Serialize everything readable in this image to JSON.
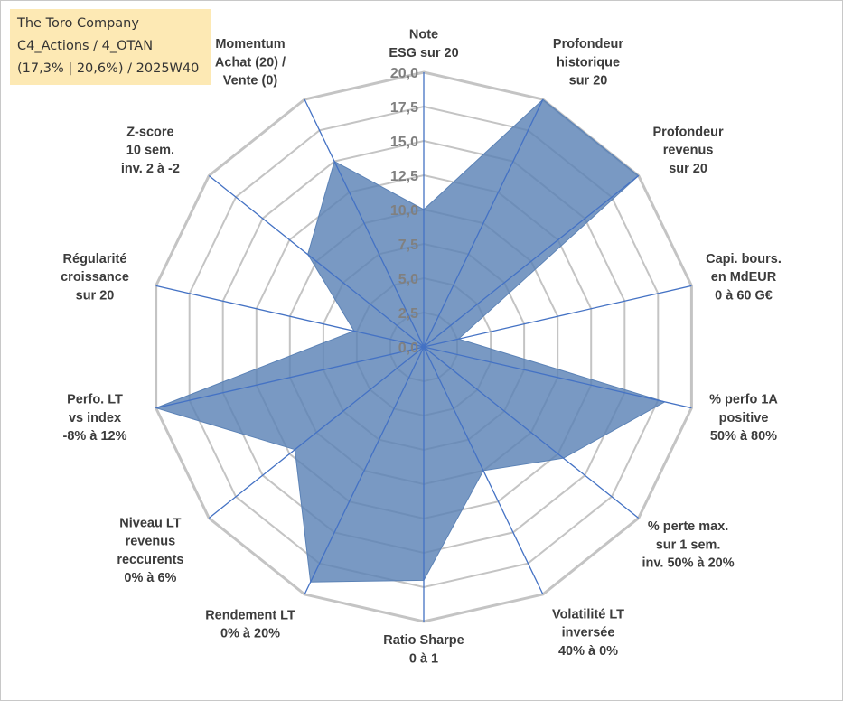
{
  "title_box": {
    "lines": [
      "The Toro Company",
      "C4_Actions / 4_OTAN",
      "(17,3% | 20,6%) / 2025W40"
    ]
  },
  "colors": {
    "fill": "#5b82b6",
    "fill_opacity": 0.82,
    "spoke": "#4472c4",
    "grid": "#c4c4c4",
    "title_bg": "#fde9b4"
  },
  "chart_data": {
    "type": "radar",
    "title": "",
    "rmin": 0,
    "rmax": 20,
    "tick_step": 2.5,
    "tick_labels": [
      "0,0",
      "2,5",
      "5,0",
      "7,5",
      "10,0",
      "12,5",
      "15,0",
      "17,5",
      "20,0"
    ],
    "axes": [
      {
        "label": [
          "Note",
          "ESG sur 20"
        ],
        "value": 10.0
      },
      {
        "label": [
          "Profondeur",
          "historique",
          "sur 20"
        ],
        "value": 20.0
      },
      {
        "label": [
          "Profondeur",
          "revenus",
          "sur 20"
        ],
        "value": 20.0
      },
      {
        "label": [
          "Capi. bours.",
          "en MdEUR",
          "0 à 60 G€"
        ],
        "value": 2.6
      },
      {
        "label": [
          "% perfo 1A",
          "positive",
          "50% à 80%"
        ],
        "value": 18.0
      },
      {
        "label": [
          "% perte max.",
          "sur 1 sem.",
          "inv. 50% à 20%"
        ],
        "value": 13.0
      },
      {
        "label": [
          "Volatilité LT",
          "inversée",
          "40% à 0%"
        ],
        "value": 10.0
      },
      {
        "label": [
          "Ratio Sharpe",
          "0 à 1"
        ],
        "value": 17.0
      },
      {
        "label": [
          "Rendement LT",
          "0% à 20%"
        ],
        "value": 19.0
      },
      {
        "label": [
          "Niveau LT",
          "revenus",
          "reccurents",
          "0% à 6%"
        ],
        "value": 12.0
      },
      {
        "label": [
          "Perfo. LT",
          "vs index",
          "-8% à 12%"
        ],
        "value": 20.0
      },
      {
        "label": [
          "Régularité",
          "croissance",
          "sur 20"
        ],
        "value": 5.2
      },
      {
        "label": [
          "Z-score",
          "10 sem.",
          "inv. 2 à -2"
        ],
        "value": 10.8
      },
      {
        "label": [
          "Momentum",
          "Achat (20) /",
          "Vente (0)"
        ],
        "value": 15.0
      }
    ]
  }
}
